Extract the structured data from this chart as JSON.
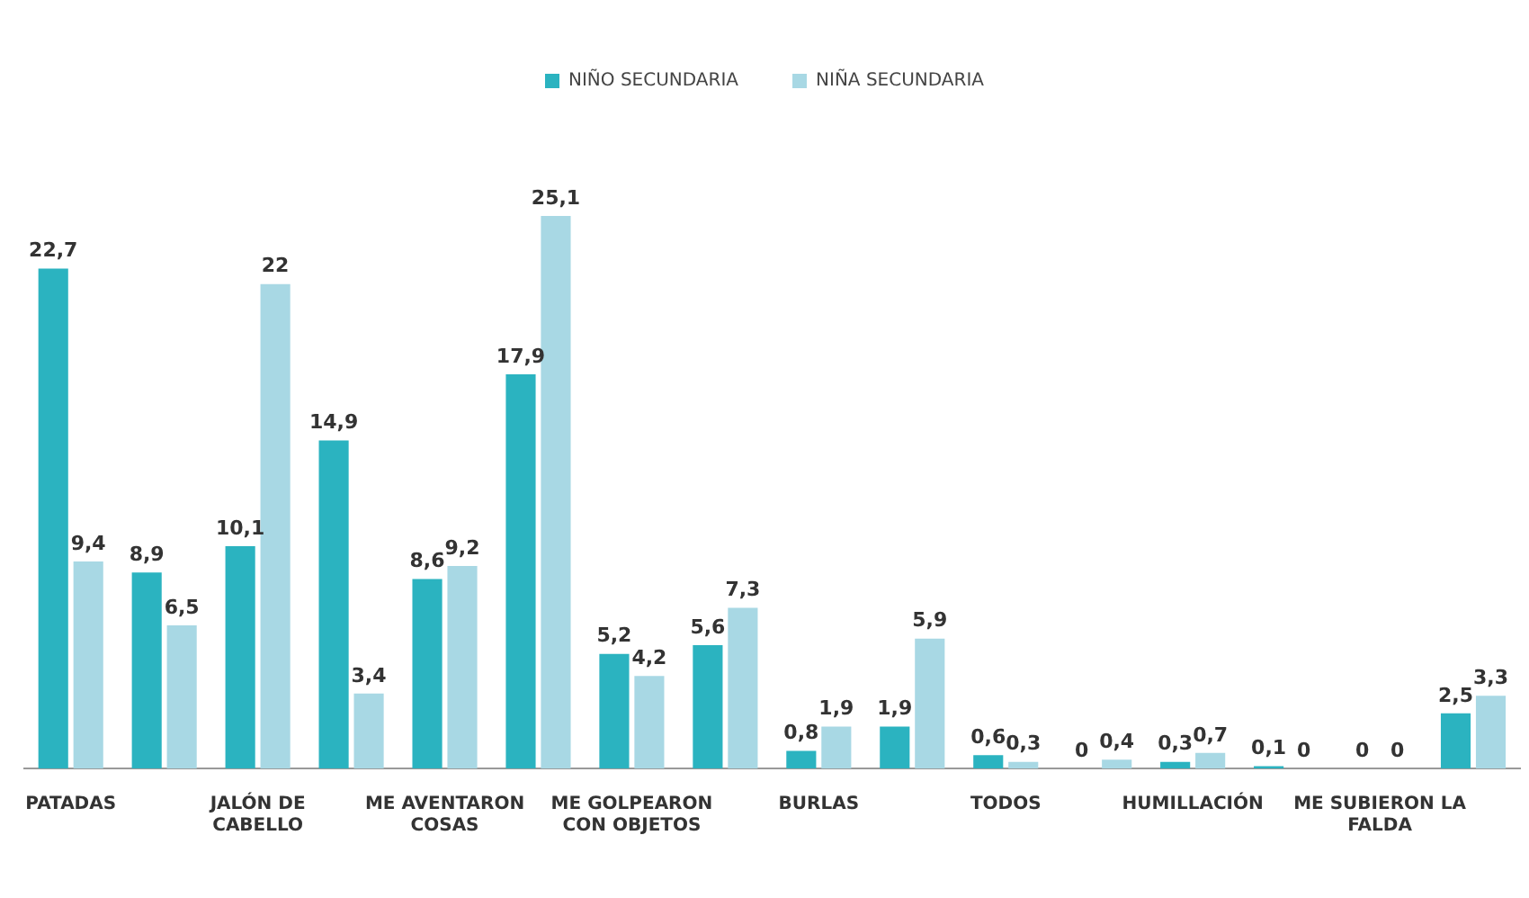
{
  "chart_data": {
    "type": "bar",
    "categories": [
      "PATADAS",
      null,
      "JALÓN DE CABELLO",
      null,
      "ME AVENTARON COSAS",
      null,
      "ME GOLPEARON CON OBJETOS",
      null,
      "BURLAS",
      null,
      "TODOS",
      null,
      "HUMILLACIÓN",
      null,
      "ME SUBIERON LA FALDA",
      null
    ],
    "series": [
      {
        "name": "NIÑO SECUNDARIA",
        "color": "#2bb3c0",
        "values": [
          22.7,
          8.9,
          10.1,
          14.9,
          8.6,
          17.9,
          5.2,
          5.6,
          0.8,
          1.9,
          0.6,
          0,
          0.3,
          0.1,
          0,
          2.5
        ],
        "value_labels": [
          "22,7",
          "8,9",
          "10,1",
          "14,9",
          "8,6",
          "17,9",
          "5,2",
          "5,6",
          "0,8",
          "1,9",
          "0,6",
          "0",
          "0,3",
          "0,1",
          "0",
          "2,5"
        ]
      },
      {
        "name": "NIÑA SECUNDARIA",
        "color": "#a8d8e4",
        "values": [
          9.4,
          6.5,
          22,
          3.4,
          9.2,
          25.1,
          4.2,
          7.3,
          1.9,
          5.9,
          0.3,
          0.4,
          0.7,
          0,
          0,
          3.3
        ],
        "value_labels": [
          "9,4",
          "6,5",
          "22",
          "3,4",
          "9,2",
          "25,1",
          "4,2",
          "7,3",
          "1,9",
          "5,9",
          "0,3",
          "0,4",
          "0,7",
          "0",
          "0",
          "3,3"
        ]
      }
    ],
    "legend": "top",
    "grid": false,
    "tick_labels": "x"
  }
}
